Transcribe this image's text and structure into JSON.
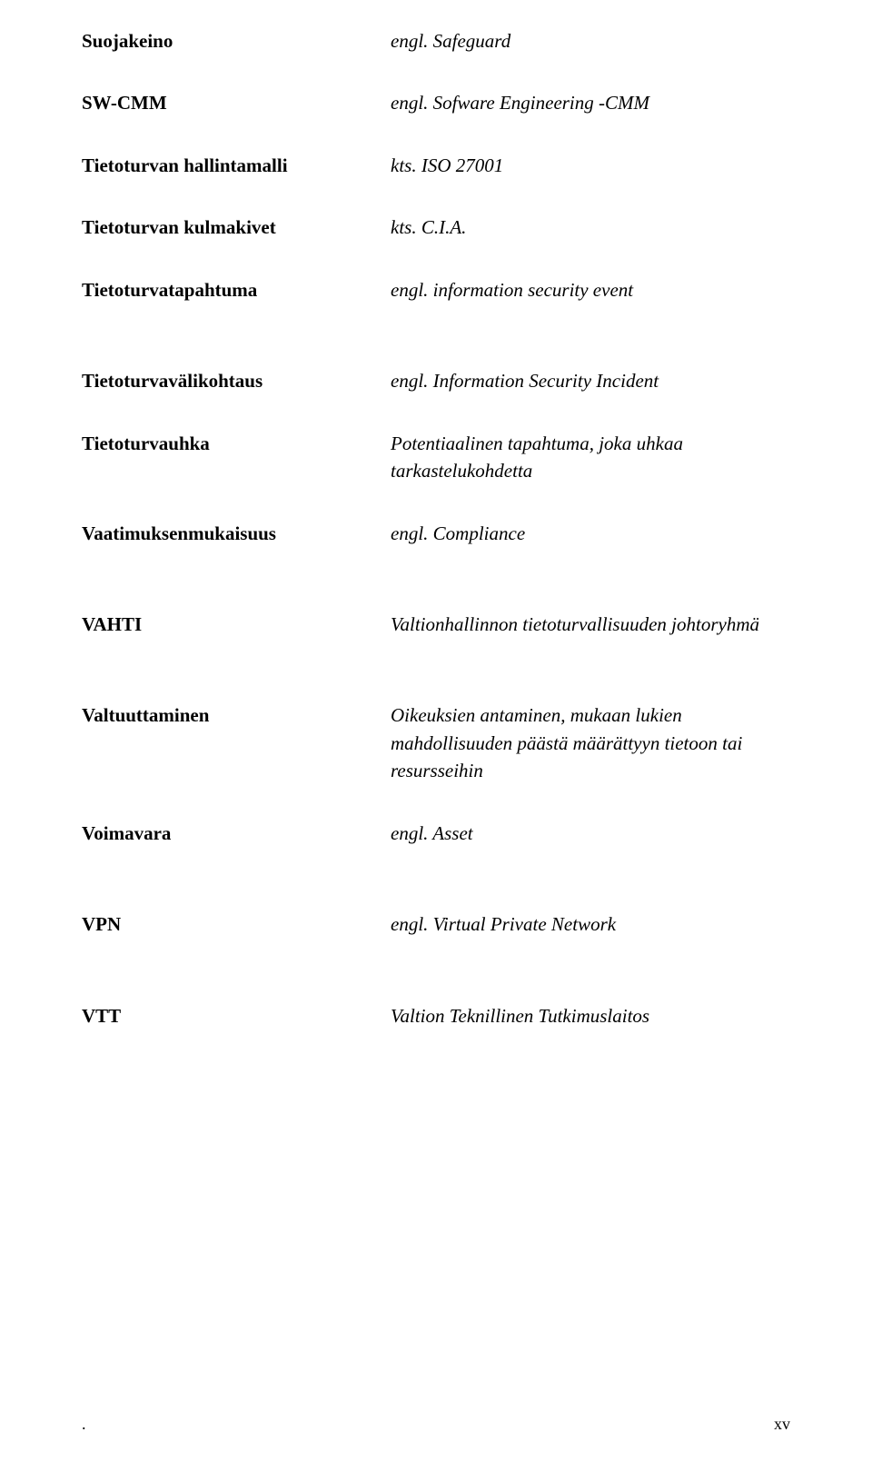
{
  "entries": {
    "e0": {
      "term": "Suojakeino",
      "defn": "engl. Safeguard"
    },
    "e1": {
      "term": "SW-CMM",
      "defn": "engl. Sofware Engineering -CMM"
    },
    "e2": {
      "term": "Tietoturvan hallintamalli",
      "defn": "kts. ISO 27001"
    },
    "e3": {
      "term": "Tietoturvan kulmakivet",
      "defn": "kts. C.I.A."
    },
    "e4": {
      "term": "Tietoturvatapahtuma",
      "defn": "engl. information security event"
    },
    "e5": {
      "term": "Tietoturvavälikohtaus",
      "defn": "engl. Information Security Incident"
    },
    "e6": {
      "term": "Tietoturvauhka",
      "defn": "Potentiaalinen tapahtuma, joka uhkaa tarkastelukohdetta"
    },
    "e7": {
      "term": "Vaatimuksenmukaisuus",
      "defn": "engl. Compliance"
    },
    "e8": {
      "term": "VAHTI",
      "defn": "Valtionhallinnon tietoturvallisuuden johtoryhmä"
    },
    "e9": {
      "term": "Valtuuttaminen",
      "defn": "Oikeuksien antaminen,  mukaan lukien mahdollisuuden päästä määrättyyn tietoon tai resursseihin"
    },
    "e10": {
      "term": "Voimavara",
      "defn": "engl. Asset"
    },
    "e11": {
      "term": "VPN",
      "defn": "engl. Virtual Private Network"
    },
    "e12": {
      "term": "VTT",
      "defn": "Valtion Teknillinen Tutkimuslaitos"
    }
  },
  "page_number": ".",
  "roman_numeral": "xv"
}
